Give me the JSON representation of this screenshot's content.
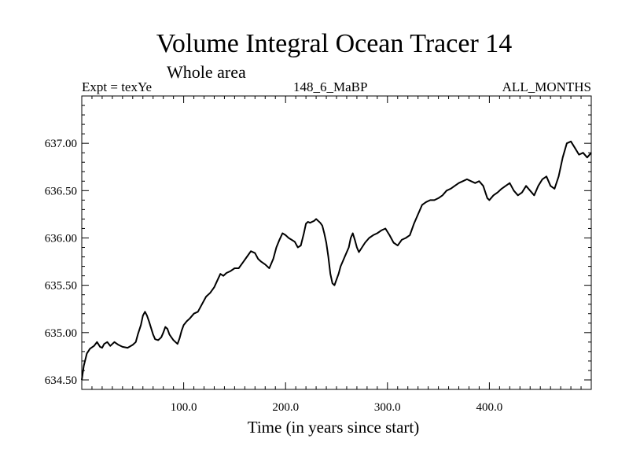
{
  "header": {
    "title": "Volume Integral Ocean Tracer 14",
    "subtitle": "Whole area",
    "expt": "Expt = texYe",
    "run": "148_6_MaBP",
    "months": "ALL_MONTHS"
  },
  "chart_data": {
    "type": "line",
    "title": "Volume Integral Ocean Tracer 14",
    "subtitle": "Whole area",
    "xlabel": "Time (in years since start)",
    "ylabel": "",
    "xlim": [
      0,
      500
    ],
    "ylim": [
      634.4,
      637.5
    ],
    "xticks": [
      100,
      200,
      300,
      400
    ],
    "xtick_labels": [
      "100.0",
      "200.0",
      "300.0",
      "400.0"
    ],
    "yticks": [
      634.5,
      635.0,
      635.5,
      636.0,
      636.5,
      637.0
    ],
    "ytick_labels": [
      "634.50",
      "635.00",
      "635.50",
      "636.00",
      "636.50",
      "637.00"
    ],
    "grid": false,
    "series": [
      {
        "color": "#000000",
        "x": [
          0,
          2,
          5,
          8,
          12,
          15,
          18,
          20,
          22,
          25,
          28,
          32,
          36,
          40,
          45,
          50,
          53,
          55,
          58,
          60,
          62,
          64,
          66,
          68,
          70,
          72,
          75,
          78,
          80,
          82,
          84,
          86,
          88,
          90,
          92,
          94,
          96,
          98,
          100,
          103,
          106,
          110,
          114,
          118,
          122,
          126,
          130,
          133,
          136,
          139,
          142,
          146,
          150,
          154,
          158,
          162,
          166,
          170,
          173,
          176,
          180,
          184,
          188,
          191,
          194,
          197,
          200,
          203,
          206,
          209,
          212,
          215,
          218,
          220,
          222,
          224,
          226,
          228,
          230,
          232,
          234,
          236,
          238,
          240,
          242,
          244,
          246,
          248,
          250,
          252,
          254,
          256,
          258,
          260,
          262,
          264,
          266,
          268,
          270,
          272,
          275,
          278,
          282,
          286,
          290,
          294,
          298,
          302,
          306,
          310,
          314,
          318,
          322,
          326,
          330,
          334,
          338,
          342,
          346,
          350,
          354,
          358,
          362,
          366,
          370,
          374,
          378,
          382,
          386,
          390,
          394,
          398,
          400,
          404,
          408,
          412,
          416,
          420,
          424,
          428,
          432,
          436,
          440,
          444,
          448,
          452,
          456,
          460,
          464,
          468,
          472,
          476,
          480,
          484,
          488,
          492,
          496,
          500
        ],
        "values": [
          634.5,
          634.65,
          634.78,
          634.83,
          634.86,
          634.9,
          634.85,
          634.84,
          634.88,
          634.9,
          634.86,
          634.9,
          634.87,
          634.85,
          634.84,
          634.87,
          634.9,
          634.98,
          635.08,
          635.18,
          635.22,
          635.18,
          635.12,
          635.05,
          634.98,
          634.93,
          634.92,
          634.95,
          635.0,
          635.06,
          635.04,
          634.98,
          634.95,
          634.92,
          634.9,
          634.88,
          634.94,
          635.02,
          635.08,
          635.12,
          635.15,
          635.2,
          635.22,
          635.3,
          635.38,
          635.42,
          635.48,
          635.55,
          635.62,
          635.6,
          635.63,
          635.65,
          635.68,
          635.68,
          635.74,
          635.8,
          635.86,
          635.84,
          635.78,
          635.75,
          635.72,
          635.68,
          635.78,
          635.9,
          635.98,
          636.05,
          636.03,
          636.0,
          635.98,
          635.96,
          635.9,
          635.92,
          636.05,
          636.15,
          636.17,
          636.16,
          636.17,
          636.18,
          636.2,
          636.18,
          636.16,
          636.13,
          636.05,
          635.95,
          635.8,
          635.62,
          635.52,
          635.5,
          635.56,
          635.62,
          635.7,
          635.75,
          635.8,
          635.85,
          635.9,
          636.0,
          636.05,
          635.98,
          635.9,
          635.85,
          635.9,
          635.95,
          636.0,
          636.03,
          636.05,
          636.08,
          636.1,
          636.03,
          635.95,
          635.92,
          635.98,
          636.0,
          636.03,
          636.15,
          636.25,
          636.35,
          636.38,
          636.4,
          636.4,
          636.42,
          636.45,
          636.5,
          636.52,
          636.55,
          636.58,
          636.6,
          636.62,
          636.6,
          636.58,
          636.6,
          636.55,
          636.42,
          636.4,
          636.45,
          636.48,
          636.52,
          636.55,
          636.58,
          636.5,
          636.45,
          636.48,
          636.55,
          636.5,
          636.45,
          636.55,
          636.62,
          636.65,
          636.55,
          636.52,
          636.65,
          636.85,
          637.0,
          637.02,
          636.95,
          636.88,
          636.9,
          636.85,
          636.9
        ]
      }
    ]
  }
}
